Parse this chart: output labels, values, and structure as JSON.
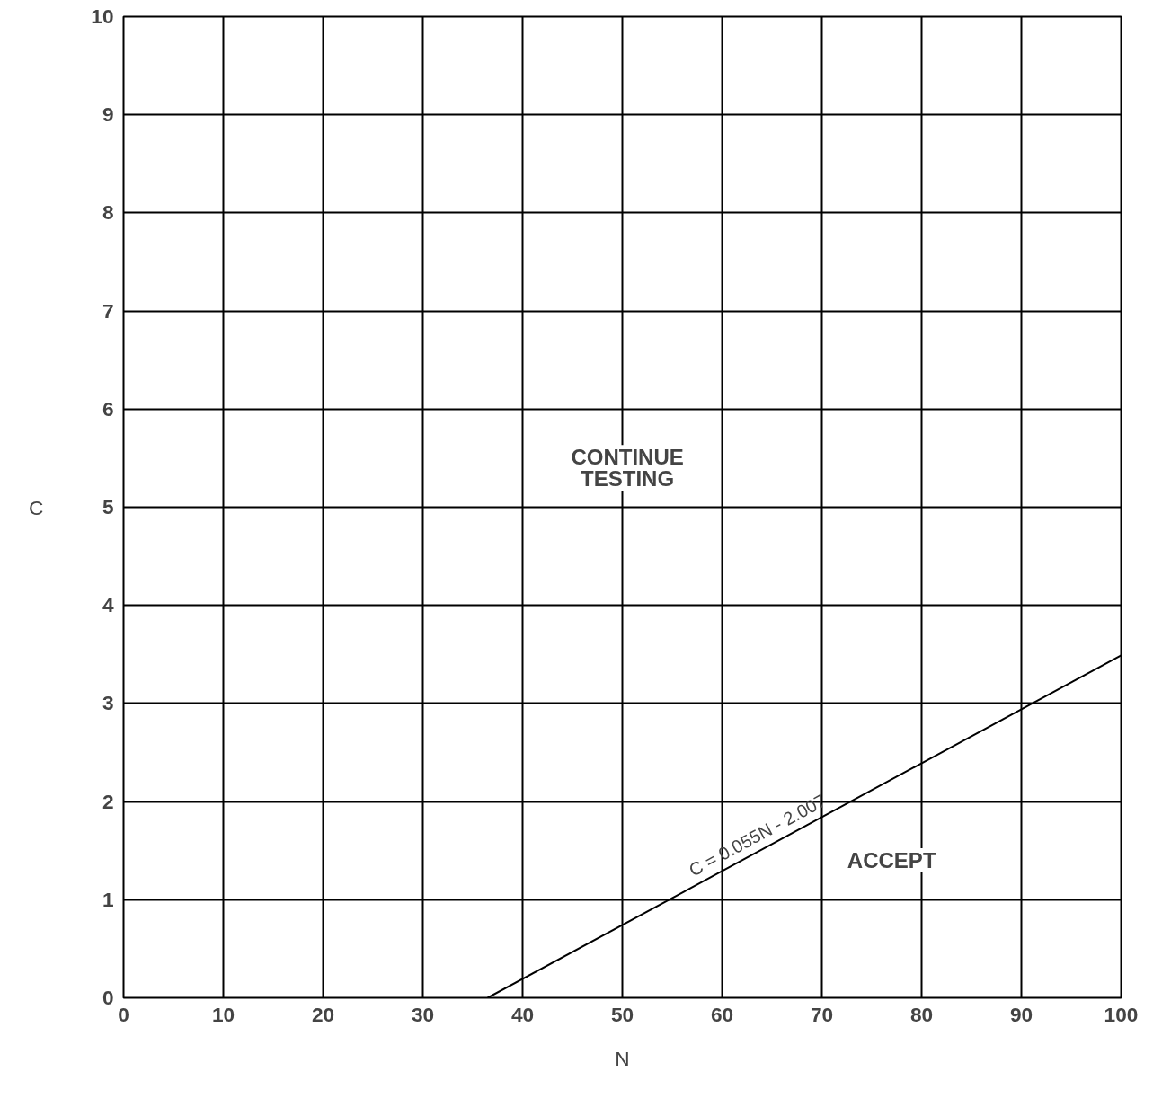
{
  "chart_data": {
    "type": "line",
    "xlabel": "N",
    "ylabel": "C",
    "x": [
      36.5,
      100
    ],
    "series": [
      {
        "color": "#000000",
        "values": [
          0,
          3.49
        ]
      }
    ],
    "xlim": [
      0,
      100
    ],
    "ylim": [
      0,
      10
    ],
    "xticks": [
      0,
      10,
      20,
      30,
      40,
      50,
      60,
      70,
      80,
      90,
      100
    ],
    "yticks": [
      0,
      1,
      2,
      3,
      4,
      5,
      6,
      7,
      8,
      9,
      10
    ],
    "grid": true,
    "marker": "none",
    "line_style": "solid",
    "annotations": [
      {
        "text": "C = 0.055N - 2.007",
        "x": 64,
        "y": 1.513
      },
      "CONTINUE TESTING",
      "ACCEPT"
    ]
  }
}
